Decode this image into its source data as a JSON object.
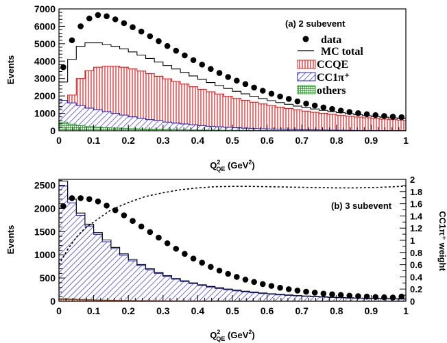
{
  "chart_data": [
    {
      "panel": "top",
      "type": "histogram",
      "annotation": "(a) 2 subevent",
      "xlabel_main": "Q",
      "xlabel_sup": "2",
      "xlabel_sub": "QE",
      "xlabel_unit": " (GeV",
      "xlabel_unit_sup": "2",
      "xlabel_close": ")",
      "ylabel": "Events",
      "xlim": [
        0,
        1
      ],
      "ylim": [
        0,
        7000
      ],
      "xticks": [
        0,
        0.1,
        0.2,
        0.3,
        0.4,
        0.5,
        0.6,
        0.7,
        0.8,
        0.9,
        1
      ],
      "xtick_labels": [
        "0",
        "0.1",
        "0.2",
        "0.3",
        "0.4",
        "0.5",
        "0.6",
        "0.7",
        "0.8",
        "0.9",
        "1"
      ],
      "yticks": [
        0,
        1000,
        2000,
        3000,
        4000,
        5000,
        6000,
        7000
      ],
      "ytick_labels": [
        "0",
        "1000",
        "2000",
        "3000",
        "4000",
        "5000",
        "6000",
        "7000"
      ],
      "legend": [
        {
          "label": "data",
          "style": "marker"
        },
        {
          "label": "MC total",
          "style": "line"
        },
        {
          "label": "CCQE",
          "style": "red-vertical-hatch"
        },
        {
          "label": "CC1π⁺",
          "style": "blue-diagonal-hatch"
        },
        {
          "label": "others",
          "style": "green-grid-hatch"
        }
      ],
      "legend_position": "upper-right",
      "bin_edges": [
        0,
        0.025,
        0.05,
        0.075,
        0.1,
        0.125,
        0.15,
        0.175,
        0.2,
        0.225,
        0.25,
        0.275,
        0.3,
        0.325,
        0.35,
        0.375,
        0.4,
        0.425,
        0.45,
        0.475,
        0.5,
        0.525,
        0.55,
        0.575,
        0.6,
        0.625,
        0.65,
        0.675,
        0.7,
        0.725,
        0.75,
        0.775,
        0.8,
        0.825,
        0.85,
        0.875,
        0.9,
        0.925,
        0.95,
        0.975,
        1.0
      ],
      "series": [
        {
          "name": "data",
          "kind": "points",
          "values": [
            3650,
            5200,
            6000,
            6450,
            6650,
            6580,
            6400,
            6180,
            5950,
            5700,
            5430,
            5150,
            4870,
            4600,
            4330,
            4060,
            3800,
            3550,
            3320,
            3090,
            2880,
            2680,
            2480,
            2300,
            2130,
            1970,
            1830,
            1690,
            1560,
            1450,
            1340,
            1250,
            1160,
            1080,
            1010,
            950,
            900,
            850,
            810,
            780
          ]
        },
        {
          "name": "MC total",
          "kind": "step",
          "values": [
            2800,
            4100,
            4850,
            5050,
            5050,
            4950,
            4850,
            4700,
            4530,
            4350,
            4150,
            3950,
            3750,
            3550,
            3350,
            3150,
            2950,
            2770,
            2600,
            2430,
            2270,
            2120,
            1980,
            1850,
            1730,
            1620,
            1520,
            1420,
            1330,
            1250,
            1170,
            1100,
            1040,
            980,
            920,
            870,
            820,
            780,
            740,
            700
          ]
        },
        {
          "name": "CCQE",
          "kind": "filled-step",
          "color": "#e41a1c",
          "values": [
            550,
            2050,
            3000,
            3450,
            3650,
            3700,
            3700,
            3650,
            3550,
            3430,
            3280,
            3130,
            2980,
            2830,
            2680,
            2530,
            2380,
            2240,
            2110,
            1980,
            1860,
            1750,
            1640,
            1540,
            1450,
            1360,
            1280,
            1200,
            1130,
            1060,
            1000,
            940,
            890,
            840,
            790,
            750,
            710,
            670,
            640,
            610
          ]
        },
        {
          "name": "CC1π⁺",
          "kind": "filled-step",
          "color": "#1f1fcc",
          "values": [
            1750,
            1600,
            1450,
            1300,
            1200,
            1100,
            1000,
            900,
            800,
            720,
            640,
            570,
            500,
            440,
            390,
            340,
            300,
            260,
            230,
            200,
            175,
            150,
            130,
            115,
            100,
            88,
            76,
            66,
            57,
            50,
            44,
            38,
            33,
            29,
            25,
            22,
            19,
            16,
            14,
            12
          ]
        },
        {
          "name": "others",
          "kind": "filled-step",
          "color": "#33aa33",
          "values": [
            500,
            380,
            300,
            250,
            210,
            180,
            160,
            140,
            120,
            105,
            92,
            80,
            70,
            62,
            54,
            47,
            41,
            36,
            32,
            28,
            25,
            22,
            19,
            17,
            15,
            13,
            12,
            10,
            9,
            8,
            7,
            6,
            5,
            5,
            4,
            4,
            3,
            3,
            3,
            2
          ]
        }
      ]
    },
    {
      "panel": "bottom",
      "type": "histogram",
      "annotation": "(b) 3 subevent",
      "xlabel_main": "Q",
      "xlabel_sup": "2",
      "xlabel_sub": "QE",
      "xlabel_unit": " (GeV",
      "xlabel_unit_sup": "2",
      "xlabel_close": ")",
      "ylabel": "Events",
      "y2label": "CC1π⁺ weight",
      "xlim": [
        0,
        1
      ],
      "ylim": [
        0,
        2625
      ],
      "y2lim": [
        0,
        2
      ],
      "xticks": [
        0,
        0.1,
        0.2,
        0.3,
        0.4,
        0.5,
        0.6,
        0.7,
        0.8,
        0.9,
        1
      ],
      "xtick_labels": [
        "0",
        "0.1",
        "0.2",
        "0.3",
        "0.4",
        "0.5",
        "0.6",
        "0.7",
        "0.8",
        "0.9",
        "1"
      ],
      "yticks": [
        0,
        500,
        1000,
        1500,
        2000,
        2500
      ],
      "ytick_labels": [
        "0",
        "500",
        "1000",
        "1500",
        "2000",
        "2500"
      ],
      "y2ticks": [
        0,
        0.2,
        0.4,
        0.6,
        0.8,
        1,
        1.2,
        1.4,
        1.6,
        1.8,
        2
      ],
      "y2tick_labels": [
        "0",
        "0.2",
        "0.4",
        "0.6",
        "0.8",
        "1",
        "1.2",
        "1.4",
        "1.6",
        "1.8",
        "2"
      ],
      "bin_edges": [
        0,
        0.025,
        0.05,
        0.075,
        0.1,
        0.125,
        0.15,
        0.175,
        0.2,
        0.225,
        0.25,
        0.275,
        0.3,
        0.325,
        0.35,
        0.375,
        0.4,
        0.425,
        0.45,
        0.475,
        0.5,
        0.525,
        0.55,
        0.575,
        0.6,
        0.625,
        0.65,
        0.675,
        0.7,
        0.725,
        0.75,
        0.775,
        0.8,
        0.825,
        0.85,
        0.875,
        0.9,
        0.925,
        0.95,
        0.975,
        1.0
      ],
      "series": [
        {
          "name": "data",
          "kind": "points",
          "values": [
            2050,
            2220,
            2220,
            2200,
            2150,
            2060,
            1960,
            1850,
            1730,
            1610,
            1490,
            1370,
            1250,
            1130,
            1020,
            920,
            830,
            740,
            660,
            590,
            525,
            465,
            415,
            370,
            330,
            290,
            260,
            230,
            205,
            185,
            165,
            150,
            135,
            120,
            110,
            100,
            92,
            85,
            80,
            100
          ]
        },
        {
          "name": "MC total",
          "kind": "step",
          "values": [
            2590,
            2200,
            1900,
            1660,
            1480,
            1320,
            1160,
            1020,
            900,
            790,
            700,
            620,
            550,
            490,
            440,
            395,
            355,
            320,
            290,
            262,
            238,
            216,
            196,
            178,
            162,
            148,
            135,
            123,
            113,
            104,
            96,
            88,
            82,
            76,
            70,
            66,
            62,
            58,
            55,
            52
          ]
        },
        {
          "name": "CC1π⁺",
          "kind": "filled-step",
          "color": "#1f1fcc",
          "values": [
            2480,
            2120,
            1850,
            1620,
            1440,
            1280,
            1130,
            990,
            870,
            770,
            680,
            600,
            535,
            475,
            425,
            380,
            340,
            305,
            275,
            248,
            224,
            202,
            183,
            166,
            151,
            138,
            126,
            115,
            105,
            96,
            88,
            81,
            75,
            69,
            64,
            60,
            56,
            52,
            49,
            46
          ]
        },
        {
          "name": "CCQE",
          "kind": "filled-step",
          "color": "#e41a1c",
          "values": [
            40,
            35,
            30,
            25,
            20,
            18,
            15,
            13,
            11,
            10,
            8,
            7,
            6,
            6,
            5,
            5,
            4,
            4,
            3,
            3,
            3,
            3,
            2,
            2,
            2,
            2,
            2,
            2,
            2,
            2,
            1,
            1,
            1,
            1,
            1,
            1,
            1,
            1,
            1,
            1
          ]
        },
        {
          "name": "others",
          "kind": "filled-step",
          "color": "#33aa33",
          "values": [
            60,
            50,
            42,
            36,
            30,
            26,
            22,
            19,
            16,
            14,
            12,
            10,
            9,
            8,
            7,
            6,
            5,
            5,
            4,
            4,
            3,
            3,
            3,
            2,
            2,
            2,
            2,
            2,
            2,
            1,
            1,
            1,
            1,
            1,
            1,
            1,
            1,
            1,
            1,
            1
          ]
        },
        {
          "name": "CC1π⁺ weight",
          "kind": "dashed-line",
          "axis": "y2",
          "x": [
            0.0,
            0.025,
            0.05,
            0.075,
            0.1,
            0.125,
            0.15,
            0.2,
            0.25,
            0.3,
            0.35,
            0.4,
            0.45,
            0.5,
            0.55,
            0.6,
            0.65,
            0.7,
            0.75,
            0.8,
            0.85,
            0.9,
            0.95,
            1.0
          ],
          "values": [
            0.6,
            0.85,
            1.05,
            1.2,
            1.3,
            1.4,
            1.5,
            1.62,
            1.72,
            1.78,
            1.83,
            1.86,
            1.88,
            1.885,
            1.885,
            1.88,
            1.875,
            1.87,
            1.865,
            1.86,
            1.86,
            1.865,
            1.875,
            1.89
          ]
        }
      ]
    }
  ]
}
